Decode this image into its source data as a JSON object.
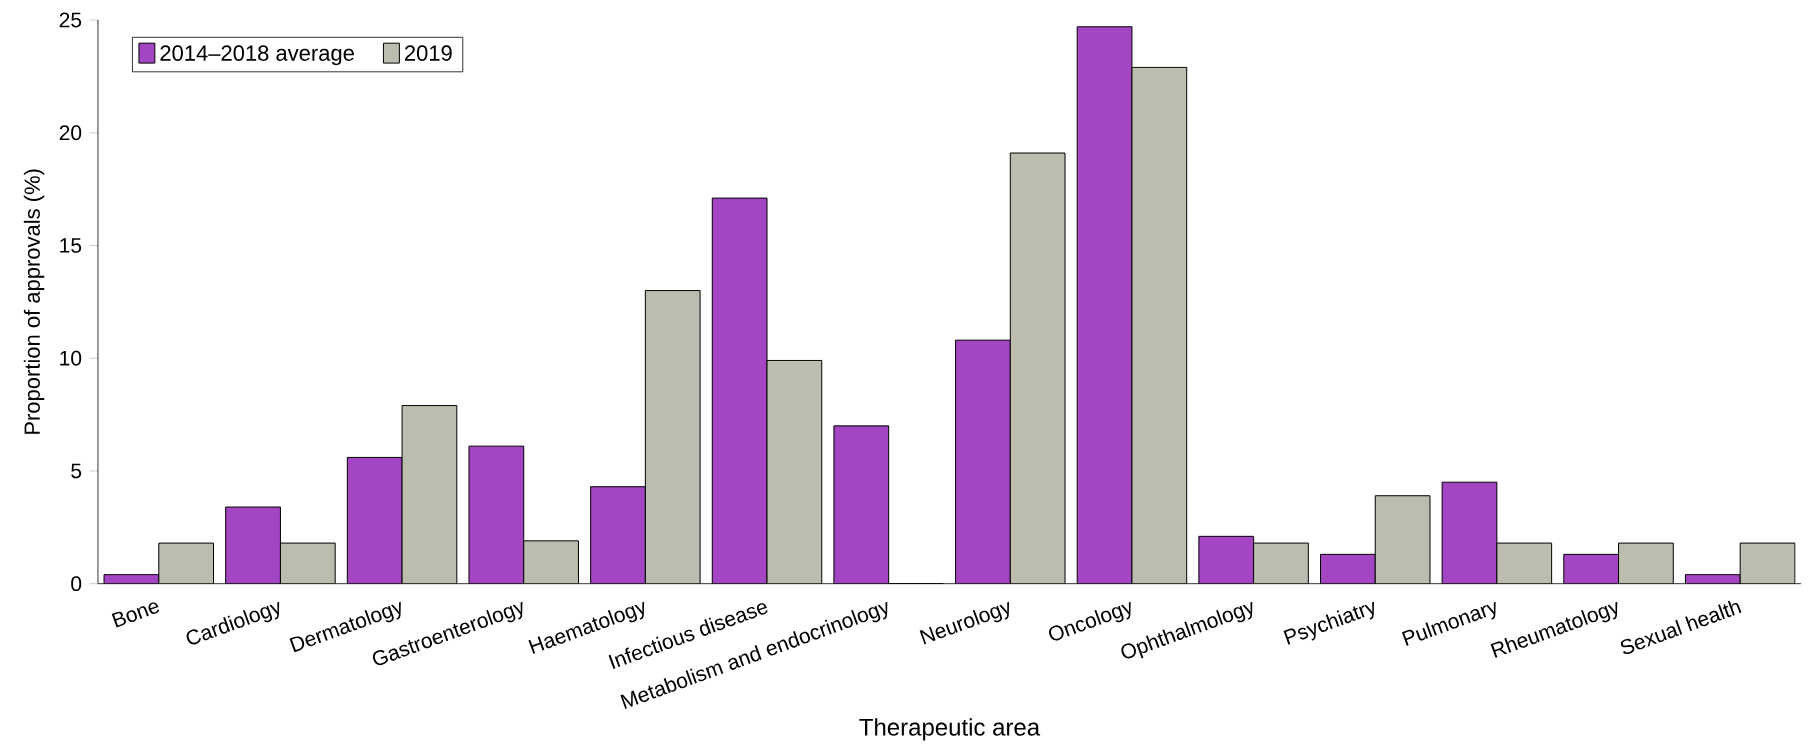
{
  "chart_data": {
    "type": "bar",
    "xlabel": "Therapeutic area",
    "ylabel": "Proportion of approvals (%)",
    "categories": [
      "Bone",
      "Cardiology",
      "Dermatology",
      "Gastroenterology",
      "Haematology",
      "Infectious disease",
      "Metabolism and endocrinology",
      "Neurology",
      "Oncology",
      "Ophthalmology",
      "Psychiatry",
      "Pulmonary",
      "Rheumatology",
      "Sexual health"
    ],
    "series": [
      {
        "name": "2014–2018 average",
        "color": "#a446c4",
        "values": [
          0.4,
          3.4,
          5.6,
          6.1,
          4.3,
          17.1,
          7.0,
          10.8,
          24.7,
          2.1,
          1.3,
          4.5,
          1.3,
          0.4
        ]
      },
      {
        "name": "2019",
        "color": "#bdbdaf",
        "values": [
          1.8,
          1.8,
          7.9,
          1.9,
          13.0,
          9.9,
          0,
          19.1,
          22.9,
          1.8,
          3.9,
          1.8,
          1.8,
          1.8
        ]
      }
    ],
    "ylim": [
      0,
      25
    ],
    "yticks": [
      0,
      5,
      10,
      15,
      20,
      25
    ],
    "legend": "top left"
  }
}
